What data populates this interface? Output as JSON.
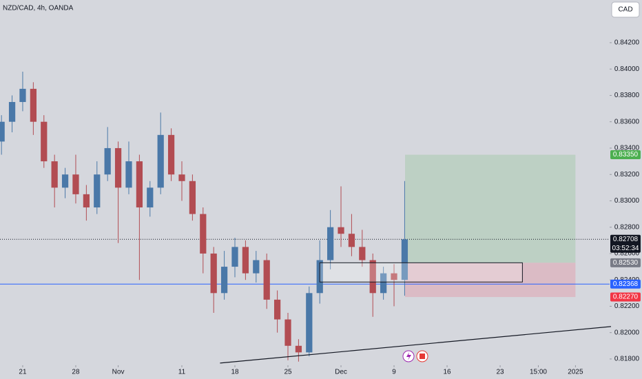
{
  "chart_data": {
    "type": "candlestick",
    "title": "NZD/CAD, 4h, OANDA",
    "currency_button": "CAD",
    "up_color": "#4a78a8",
    "down_color": "#b24c52",
    "x": [
      -2,
      -1,
      0,
      1,
      2,
      3,
      4,
      5,
      6,
      7,
      8,
      9,
      10,
      11,
      12,
      13,
      14,
      15,
      16,
      17,
      18,
      19,
      20,
      21,
      22,
      23,
      24,
      25,
      26,
      27,
      28,
      29,
      30,
      31,
      32,
      33,
      34,
      35,
      36
    ],
    "open": [
      0.8345,
      0.836,
      0.8375,
      0.8385,
      0.836,
      0.833,
      0.831,
      0.832,
      0.8305,
      0.8295,
      0.832,
      0.834,
      0.831,
      0.833,
      0.8295,
      0.831,
      0.835,
      0.832,
      0.8315,
      0.829,
      0.826,
      0.823,
      0.825,
      0.8265,
      0.8245,
      0.8255,
      0.8225,
      0.821,
      0.819,
      0.8185,
      0.823,
      0.8255,
      0.828,
      0.8275,
      0.8265,
      0.8255,
      0.823,
      0.8245,
      0.824
    ],
    "high": [
      0.8365,
      0.838,
      0.8398,
      0.839,
      0.8365,
      0.8335,
      0.8325,
      0.8335,
      0.8312,
      0.833,
      0.8356,
      0.8345,
      0.8345,
      0.8335,
      0.8315,
      0.8367,
      0.8355,
      0.833,
      0.832,
      0.8295,
      0.8265,
      0.8262,
      0.8272,
      0.827,
      0.8262,
      0.826,
      0.8232,
      0.8215,
      0.8195,
      0.8235,
      0.827,
      0.8293,
      0.8311,
      0.829,
      0.8278,
      0.826,
      0.825,
      0.8252,
      0.8315
    ],
    "low": [
      0.8335,
      0.8352,
      0.8368,
      0.835,
      0.8325,
      0.8295,
      0.8302,
      0.8298,
      0.8285,
      0.829,
      0.8315,
      0.8268,
      0.8305,
      0.824,
      0.8288,
      0.8305,
      0.8315,
      0.83,
      0.8285,
      0.8245,
      0.8215,
      0.8225,
      0.8242,
      0.824,
      0.8238,
      0.8218,
      0.82,
      0.8179,
      0.8178,
      0.8182,
      0.8222,
      0.8248,
      0.8265,
      0.8258,
      0.825,
      0.8212,
      0.8225,
      0.822,
      0.8228
    ],
    "close": [
      0.836,
      0.8375,
      0.8385,
      0.836,
      0.833,
      0.831,
      0.832,
      0.8305,
      0.8295,
      0.832,
      0.834,
      0.831,
      0.833,
      0.8295,
      0.831,
      0.835,
      0.832,
      0.8315,
      0.829,
      0.826,
      0.823,
      0.825,
      0.8265,
      0.8245,
      0.8255,
      0.8225,
      0.821,
      0.819,
      0.8185,
      0.823,
      0.8255,
      0.828,
      0.8275,
      0.8265,
      0.8255,
      0.823,
      0.8245,
      0.824,
      0.82708
    ],
    "xlim": [
      -2.14,
      55.32
    ],
    "ylim": [
      0.81648,
      0.84524
    ],
    "xticks": [
      {
        "value": 0,
        "label": "21"
      },
      {
        "value": 5,
        "label": "28"
      },
      {
        "value": 9,
        "label": "Nov"
      },
      {
        "value": 15,
        "label": "11"
      },
      {
        "value": 20,
        "label": "18"
      },
      {
        "value": 25,
        "label": "25"
      },
      {
        "value": 30,
        "label": "Dec"
      },
      {
        "value": 35,
        "label": "9"
      },
      {
        "value": 40,
        "label": "16"
      },
      {
        "value": 45,
        "label": "23"
      },
      {
        "value": 48.6,
        "label": "15:00"
      },
      {
        "value": 52.1,
        "label": "2025"
      }
    ],
    "yticks": [
      {
        "value": 0.818,
        "label": "0.81800"
      },
      {
        "value": 0.82,
        "label": "0.82000"
      },
      {
        "value": 0.822,
        "label": "0.82200"
      },
      {
        "value": 0.824,
        "label": "0.82400"
      },
      {
        "value": 0.826,
        "label": "0.82600"
      },
      {
        "value": 0.828,
        "label": "0.82800"
      },
      {
        "value": 0.83,
        "label": "0.83000"
      },
      {
        "value": 0.832,
        "label": "0.83200"
      },
      {
        "value": 0.834,
        "label": "0.83400"
      },
      {
        "value": 0.836,
        "label": "0.83600"
      },
      {
        "value": 0.838,
        "label": "0.83800"
      },
      {
        "value": 0.84,
        "label": "0.84000"
      },
      {
        "value": 0.842,
        "label": "0.84200"
      }
    ],
    "last_price": {
      "value": 0.82708,
      "label": "0.82708",
      "countdown": "03:52:34",
      "color": "#131722"
    },
    "horizontal_line": {
      "value": 0.82368,
      "label": "0.82368",
      "color": "#2962ff"
    },
    "position": {
      "x": [
        36.04,
        52.1
      ],
      "target": {
        "value": 0.8335,
        "label": "0.83350",
        "color": "#4caf50"
      },
      "entry": {
        "value": 0.8253,
        "label": "0.82530",
        "color": "#787b86"
      },
      "stop": {
        "value": 0.8227,
        "label": "0.82270",
        "color": "#f23645"
      }
    },
    "zone": {
      "x": [
        28,
        47.1
      ],
      "y": [
        0.82384,
        0.8253
      ]
    },
    "trendline": {
      "x": [
        18.6,
        55.45
      ],
      "y": [
        0.81769,
        0.82046
      ]
    }
  }
}
